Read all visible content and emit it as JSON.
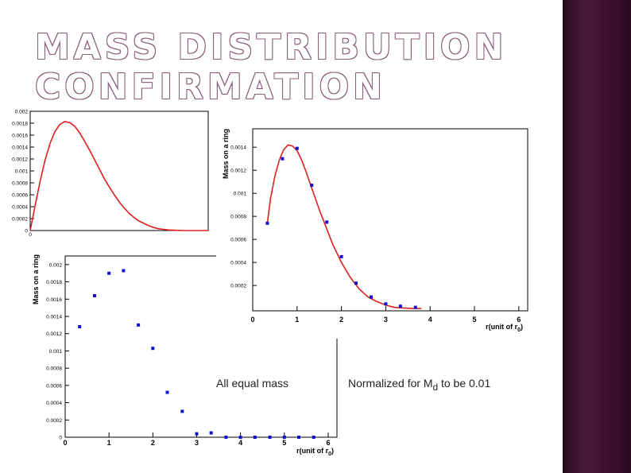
{
  "slide": {
    "title_line1": "MASS DISTRIBUTION",
    "title_line2": "CONFIRMATION",
    "caption_equal": "All equal mass",
    "caption_norm_prefix": "Normalized for M",
    "caption_norm_sub": "d",
    "caption_norm_suffix": " to be 0.01",
    "colors": {
      "sidebar": "#3a0f2d",
      "title_outline": "#8a5d7a",
      "curve": "#e02020",
      "marker": "#1010d0"
    }
  },
  "chart_data": [
    {
      "id": "analytic-curve",
      "type": "line",
      "title": "",
      "xlabel": "",
      "ylabel": "",
      "xlim": [
        0,
        3.6
      ],
      "ylim": [
        0,
        0.002
      ],
      "yticks": [
        "0.002",
        "0.0018",
        "0.0016",
        "0.0014",
        "0.0012",
        "0.001",
        "0.0008",
        "0.0006",
        "0.0004",
        "0.0002",
        "0"
      ],
      "xticks": [
        "0"
      ],
      "series": [
        {
          "name": "curve",
          "x": [
            0.0,
            0.1,
            0.2,
            0.3,
            0.4,
            0.5,
            0.6,
            0.7,
            0.8,
            0.9,
            1.0,
            1.1,
            1.2,
            1.3,
            1.4,
            1.5,
            1.6,
            1.7,
            1.8,
            1.9,
            2.0,
            2.1,
            2.2,
            2.3,
            2.4,
            2.5,
            2.6,
            2.7,
            2.8,
            2.9,
            3.0,
            3.1,
            3.2,
            3.3,
            3.4,
            3.5,
            3.6
          ],
          "y": [
            0.0,
            0.00042,
            0.00082,
            0.00118,
            0.00146,
            0.00166,
            0.00178,
            0.00183,
            0.00181,
            0.00175,
            0.00164,
            0.0015,
            0.00135,
            0.00119,
            0.00103,
            0.00087,
            0.00073,
            0.0006,
            0.00048,
            0.00038,
            0.00029,
            0.00022,
            0.00016,
            0.00012,
            8e-05,
            5e-05,
            3e-05,
            2e-05,
            1e-05,
            5e-06,
            2e-06,
            0.0,
            0.0,
            0.0,
            0.0,
            0.0,
            0.0
          ]
        }
      ]
    },
    {
      "id": "equal-mass",
      "type": "scatter",
      "title": "",
      "xlabel": "r(unit of r",
      "xlabel_sub": "0",
      "xlabel_end": ")",
      "ylabel": "Mass on a ring",
      "xlim": [
        0,
        6.2
      ],
      "ylim": [
        0,
        0.0021
      ],
      "xticks": [
        "0",
        "1",
        "2",
        "3",
        "4",
        "5",
        "6"
      ],
      "yticks": [
        "0",
        "0.0002",
        "0.0004",
        "0.0006",
        "0.0008",
        "0.001",
        "0.0012",
        "0.0014",
        "0.0016",
        "0.0018",
        "0.002"
      ],
      "series": [
        {
          "name": "ring mass",
          "x": [
            0.33,
            0.67,
            1.0,
            1.33,
            1.67,
            2.0,
            2.33,
            2.67,
            3.0,
            3.33,
            3.67,
            4.0,
            4.33,
            4.67,
            5.0,
            5.33,
            5.67
          ],
          "y": [
            0.00128,
            0.00164,
            0.0019,
            0.00193,
            0.0013,
            0.00103,
            0.00052,
            0.0003,
            4e-05,
            5e-05,
            0.0,
            0.0,
            0.0,
            0.0,
            0.0,
            0.0,
            0.0
          ]
        }
      ]
    },
    {
      "id": "normalized",
      "type": "line",
      "title": "",
      "xlabel": "r(unit of r",
      "xlabel_sub": "0",
      "xlabel_end": ")",
      "ylabel": "Mass on a ring",
      "xlim": [
        0,
        6.2
      ],
      "ylim": [
        -2e-05,
        0.00156
      ],
      "xticks": [
        "0",
        "1",
        "2",
        "3",
        "4",
        "5",
        "6"
      ],
      "yticks": [
        "0.0002",
        "0.0004",
        "0.0006",
        "0.0008",
        "0.001",
        "0.0012",
        "0.0014"
      ],
      "series": [
        {
          "name": "fit",
          "x": [
            0.33,
            0.4,
            0.5,
            0.6,
            0.7,
            0.8,
            0.9,
            1.0,
            1.1,
            1.2,
            1.3,
            1.4,
            1.5,
            1.6,
            1.7,
            1.8,
            1.9,
            2.0,
            2.2,
            2.4,
            2.6,
            2.8,
            3.0,
            3.2,
            3.4,
            3.6,
            3.8
          ],
          "y": [
            0.00074,
            0.00095,
            0.00115,
            0.00129,
            0.00138,
            0.00142,
            0.00141,
            0.00137,
            0.00129,
            0.00119,
            0.00108,
            0.00097,
            0.00086,
            0.00076,
            0.00066,
            0.00056,
            0.00048,
            0.0004,
            0.00027,
            0.00017,
            0.0001,
            6e-05,
            3e-05,
            1e-05,
            5e-06,
            0.0,
            0.0
          ]
        },
        {
          "name": "points",
          "x": [
            0.33,
            0.67,
            1.0,
            1.33,
            1.67,
            2.0,
            2.33,
            2.67,
            3.0,
            3.33,
            3.67
          ],
          "y": [
            0.00074,
            0.0013,
            0.00139,
            0.00107,
            0.00075,
            0.00045,
            0.00022,
            0.0001,
            4e-05,
            2e-05,
            1e-05
          ]
        }
      ]
    }
  ]
}
